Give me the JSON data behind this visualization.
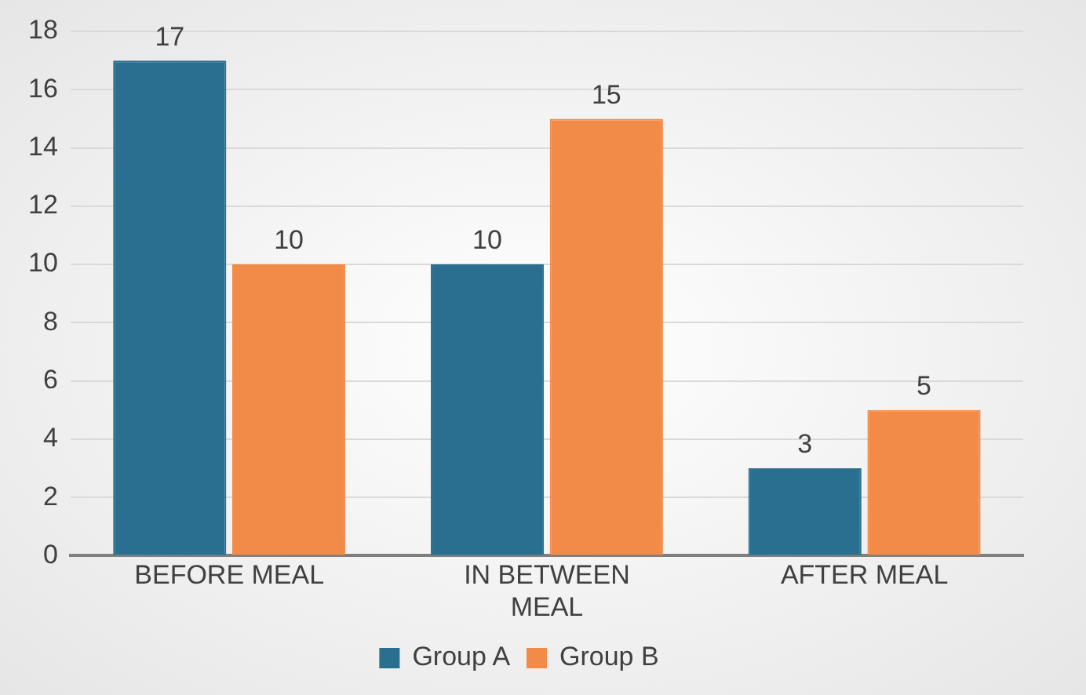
{
  "chart_data": {
    "type": "bar",
    "categories": [
      "BEFORE MEAL",
      "IN BETWEEN MEAL",
      "AFTER MEAL"
    ],
    "series": [
      {
        "name": "Group A",
        "color": "#2a6f8f",
        "values": [
          17,
          10,
          3
        ]
      },
      {
        "name": "Group B",
        "color": "#f28a48",
        "values": [
          10,
          15,
          5
        ]
      }
    ],
    "ylim": [
      0,
      18
    ],
    "yticks": [
      0,
      2,
      4,
      6,
      8,
      10,
      12,
      14,
      16,
      18
    ],
    "grid": "y",
    "legend": "bottom",
    "data_labels": true
  }
}
